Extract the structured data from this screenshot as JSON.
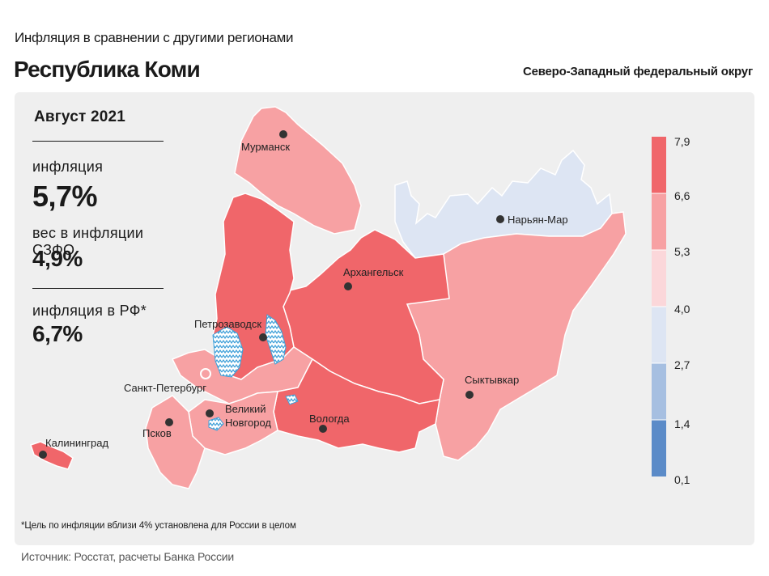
{
  "header": {
    "subtitle": "Инфляция в сравнении с другими регионами",
    "region": "Республика Коми",
    "district": "Северо-Западный федеральный округ"
  },
  "stats": {
    "month": "Август 2021",
    "inflation_label": "инфляция",
    "inflation_value": "5,7%",
    "weight_label": "вес в инфляции СЗФО",
    "weight_value": "4,9%",
    "rf_label": "инфляция в РФ*",
    "rf_value": "6,7%"
  },
  "footnote": "*Цель по инфляции вблизи 4% установлена для России в целом",
  "source": "Источник: Росстат, расчеты Банка России",
  "legend": {
    "ticks": [
      "7,9",
      "6,6",
      "5,3",
      "4,0",
      "2,7",
      "1,4",
      "0,1"
    ],
    "colors": [
      "#f0666a",
      "#f7a1a3",
      "#fbd7da",
      "#dde5f3",
      "#a6bfe1",
      "#5b8bc8"
    ]
  },
  "cities": {
    "murmansk": "Мурманск",
    "naryan_mar": "Нарьян-Мар",
    "arkhangelsk": "Архангельск",
    "petrozavodsk": "Петрозаводск",
    "spb": "Санкт-Петербург",
    "veliky_1": "Великий",
    "veliky_2": "Новгород",
    "pskov": "Псков",
    "vologda": "Вологда",
    "syktyvkar": "Сыктывкар",
    "kaliningrad": "Калининград"
  },
  "map_colors": {
    "high": "#f0666a",
    "mid": "#f7a1a3",
    "light_blue": "#dde5f3",
    "water": "#3fa0d8"
  }
}
